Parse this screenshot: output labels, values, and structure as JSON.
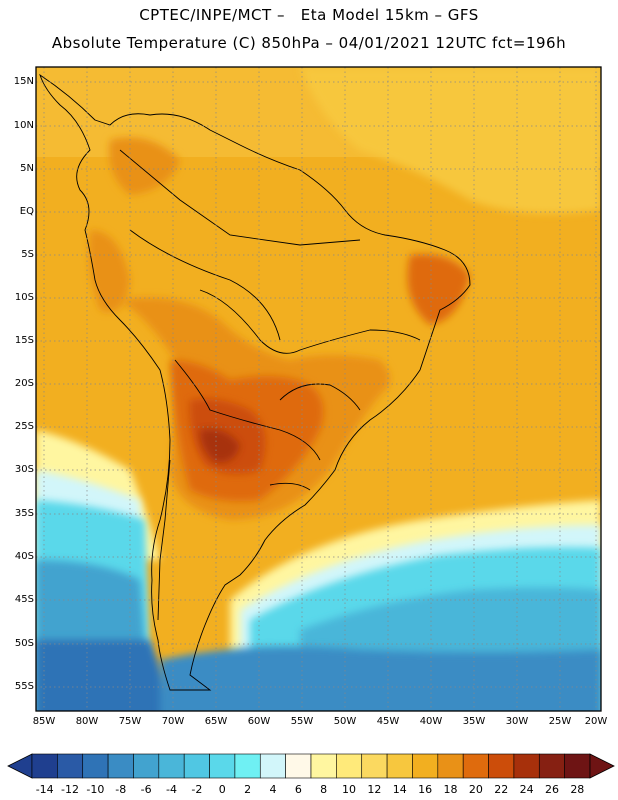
{
  "header": {
    "line1": "CPTEC/INPE/MCT –   Eta Model 15km – GFS",
    "line2": "Absolute Temperature (C) 850hPa – 04/01/2021 12UTC fct=196h"
  },
  "map": {
    "region": "South America",
    "lat_labels": [
      "15N",
      "10N",
      "5N",
      "EQ",
      "5S",
      "10S",
      "15S",
      "20S",
      "25S",
      "30S",
      "35S",
      "40S",
      "45S",
      "50S",
      "55S"
    ],
    "lon_labels": [
      "85W",
      "80W",
      "75W",
      "70W",
      "65W",
      "60W",
      "55W",
      "50W",
      "45W",
      "40W",
      "35W",
      "30W",
      "25W",
      "20W"
    ]
  },
  "colorbar": {
    "labels": [
      "-14",
      "-12",
      "-10",
      "-8",
      "-6",
      "-4",
      "-2",
      "0",
      "2",
      "4",
      "6",
      "8",
      "10",
      "12",
      "14",
      "16",
      "18",
      "20",
      "22",
      "24",
      "26",
      "28"
    ],
    "colors": [
      "#1f3f8f",
      "#2a5aa6",
      "#2f73b6",
      "#3a8cc4",
      "#42a3cf",
      "#4ab6d9",
      "#50c7e3",
      "#5ad8ea",
      "#6ff0f3",
      "#d2f6fa",
      "#fff9e8",
      "#fff6a0",
      "#ffea7a",
      "#fbd960",
      "#f7c73e",
      "#f2af20",
      "#e99117",
      "#df6b0d",
      "#cc4d0a",
      "#a7300b",
      "#862012",
      "#6e1414"
    ],
    "min_label": "-14",
    "max_label": "28"
  }
}
